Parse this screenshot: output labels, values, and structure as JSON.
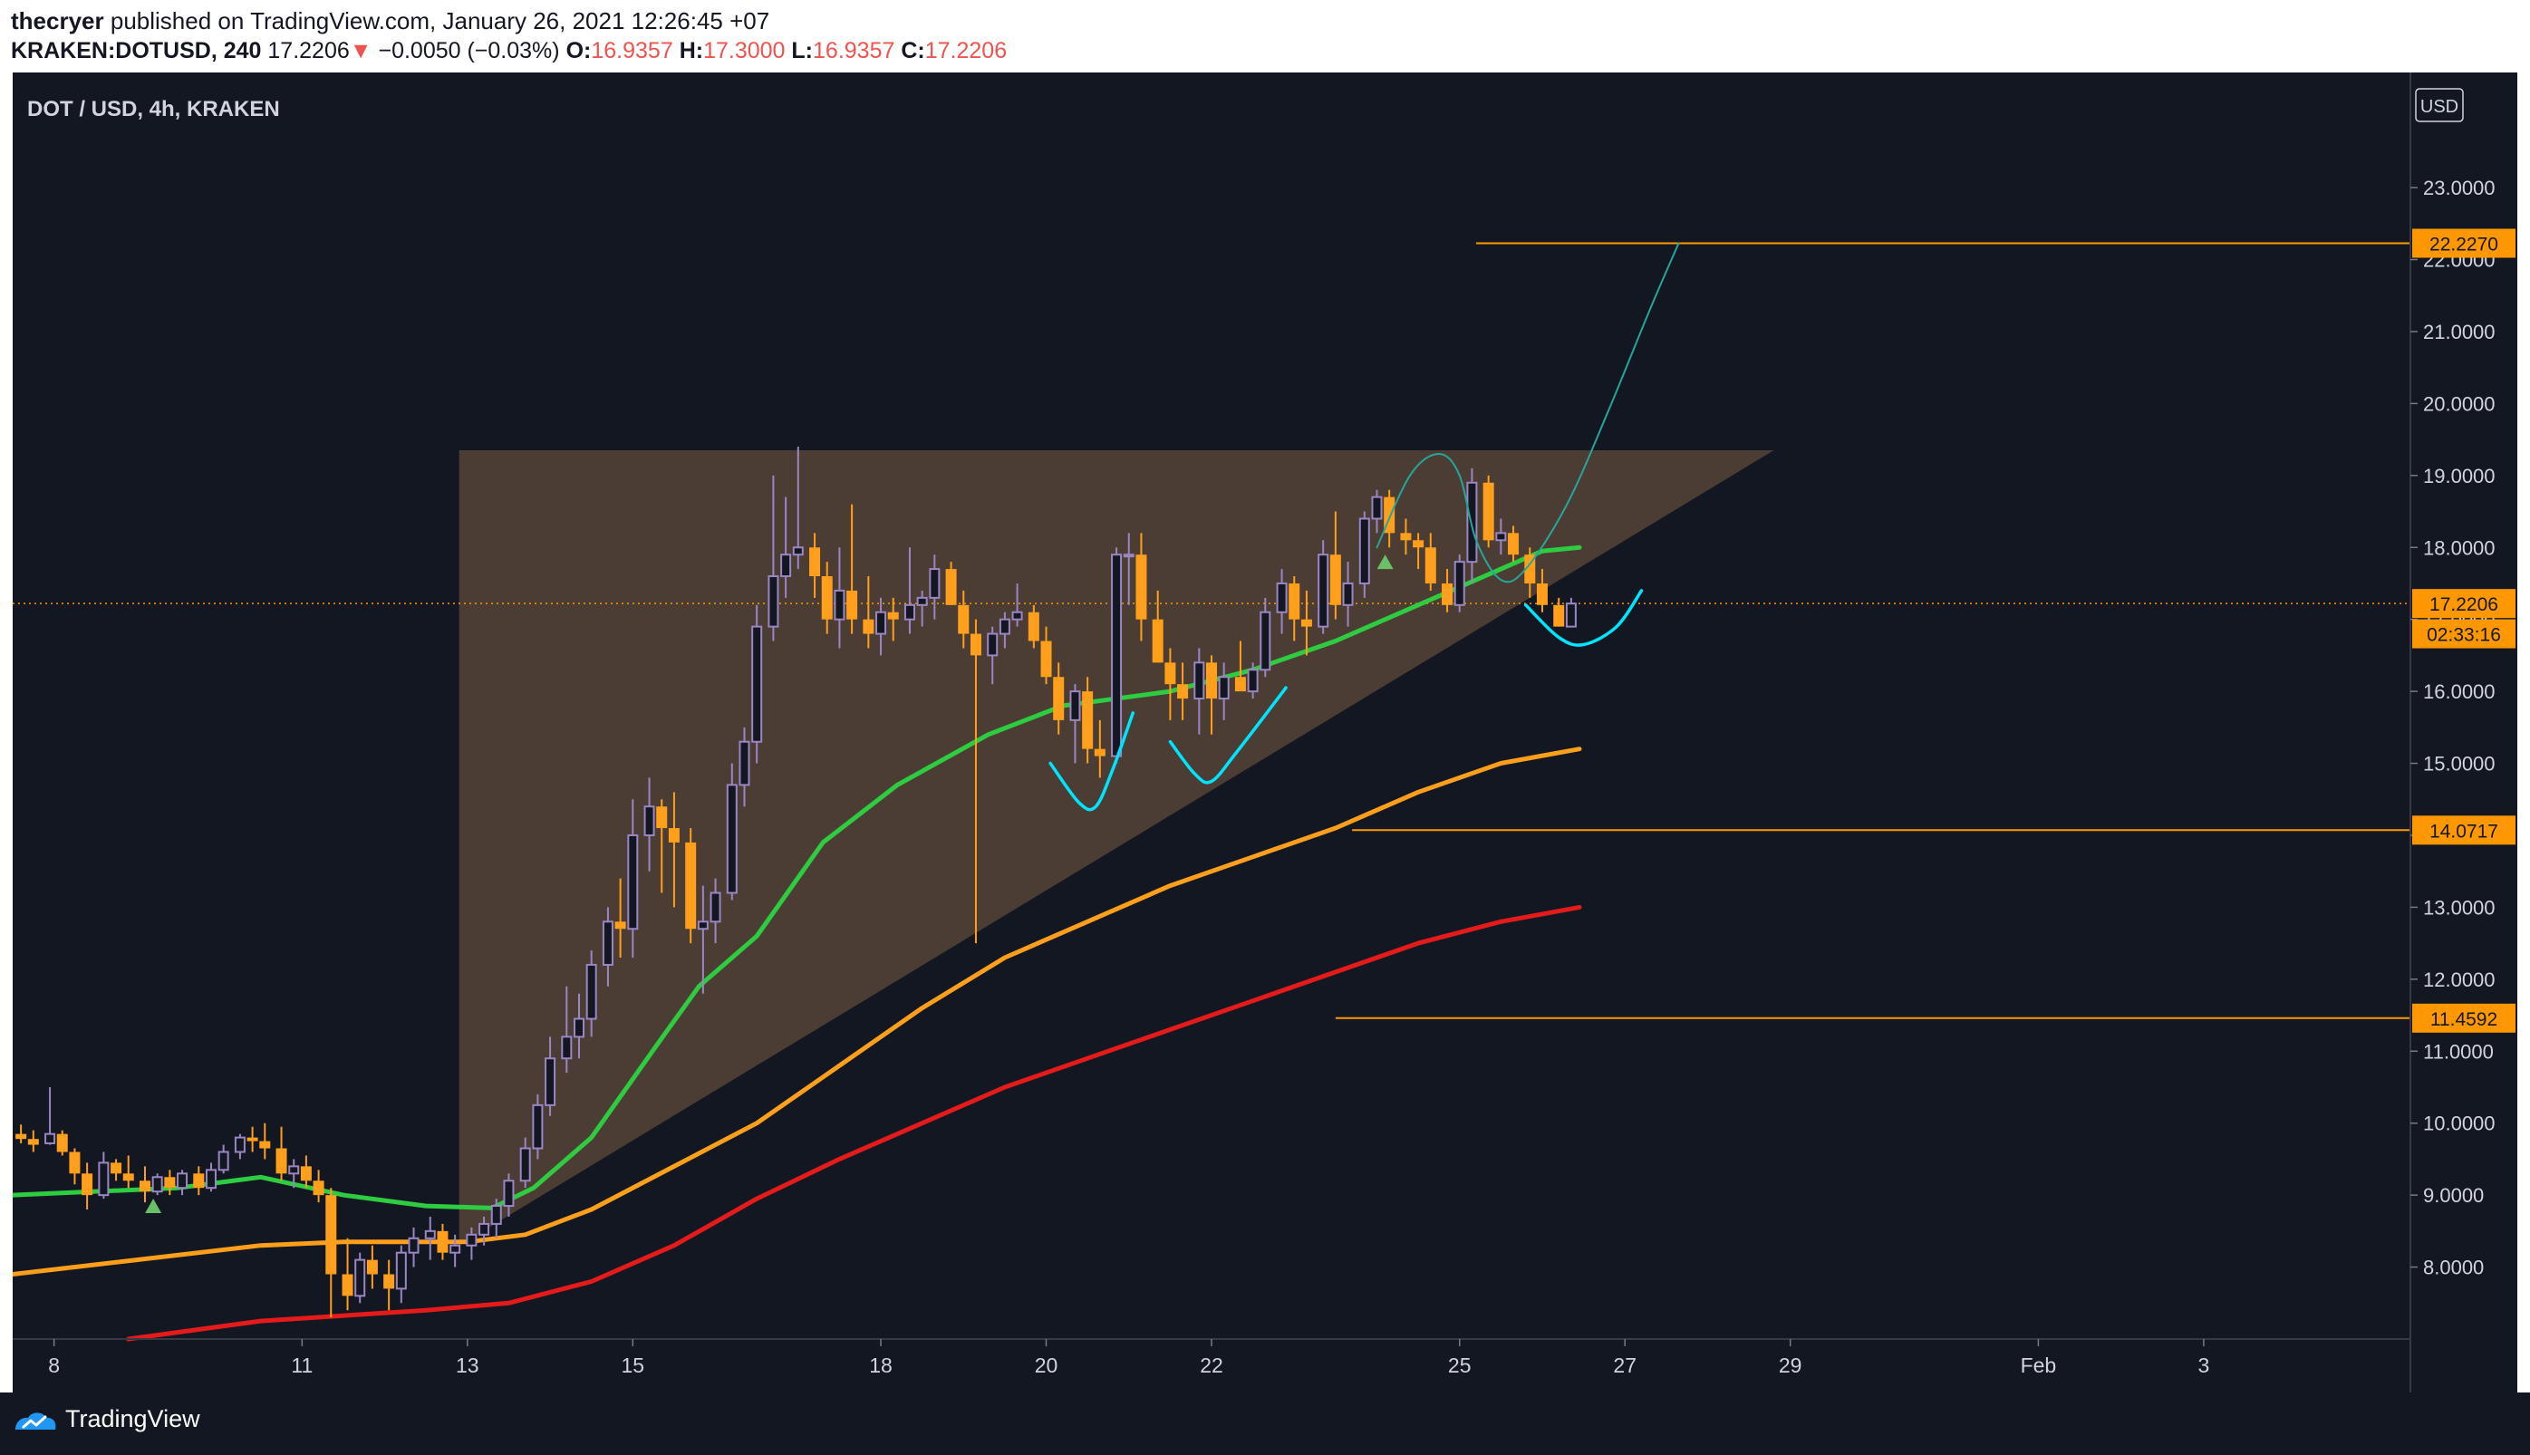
{
  "header": {
    "author": "thecryer",
    "published_text": "published on TradingView.com, January 26, 2021 12:26:45 +07",
    "symbol": "KRAKEN:DOTUSD, 240",
    "price": "17.2206",
    "change_arrow": "▼",
    "change": "−0.0050 (−0.03%)",
    "o_label": "O:",
    "o_value": "16.9357",
    "h_label": "H:",
    "h_value": "17.3000",
    "l_label": "L:",
    "l_value": "16.9357",
    "c_label": "C:",
    "c_value": "17.2206"
  },
  "chart_data": {
    "type": "candlestick",
    "title": "DOT / USD, 4h, KRAKEN",
    "currency": "USD",
    "ylim": [
      7.0,
      24.6
    ],
    "y_ticks": [
      8,
      9,
      10,
      11,
      12,
      13,
      14,
      15,
      16,
      17,
      18,
      19,
      20,
      21,
      22,
      23
    ],
    "y_tick_labels": [
      "8.0000",
      "9.0000",
      "10.0000",
      "11.0000",
      "12.0000",
      "13.0000",
      "14.0000",
      "15.0000",
      "16.0000",
      "17.0000",
      "18.0000",
      "19.0000",
      "20.0000",
      "21.0000",
      "22.0000",
      "23.0000"
    ],
    "xlim_days": [
      7.5,
      36.5
    ],
    "x_ticks": [
      {
        "day": 8,
        "label": "8"
      },
      {
        "day": 11,
        "label": "11"
      },
      {
        "day": 13,
        "label": "13"
      },
      {
        "day": 15,
        "label": "15"
      },
      {
        "day": 18,
        "label": "18"
      },
      {
        "day": 20,
        "label": "20"
      },
      {
        "day": 22,
        "label": "22"
      },
      {
        "day": 25,
        "label": "25"
      },
      {
        "day": 27,
        "label": "27"
      },
      {
        "day": 29,
        "label": "29"
      },
      {
        "day": 32,
        "label": "Feb"
      },
      {
        "day": 34,
        "label": "3"
      }
    ],
    "price_labels": [
      {
        "value": 22.227,
        "label": "22.2270",
        "kind": "level"
      },
      {
        "value": 17.2206,
        "label": "17.2206",
        "kind": "last"
      },
      {
        "value": 16.8,
        "label": "02:33:16",
        "kind": "countdown"
      },
      {
        "value": 14.0717,
        "label": "14.0717",
        "kind": "level"
      },
      {
        "value": 11.4592,
        "label": "11.4592",
        "kind": "level"
      }
    ],
    "horizontal_levels": [
      {
        "value": 22.227,
        "from_day": 25.2
      },
      {
        "value": 14.0717,
        "from_day": 23.7
      },
      {
        "value": 11.4592,
        "from_day": 23.5
      }
    ],
    "last_price": 17.2206,
    "triangle": [
      [
        12.9,
        19.35
      ],
      [
        28.8,
        19.35
      ],
      [
        12.9,
        8.3
      ]
    ],
    "candles": [
      [
        7.6,
        9.85,
        9.98,
        9.72,
        9.78
      ],
      [
        7.75,
        9.78,
        9.9,
        9.6,
        9.7
      ],
      [
        7.95,
        9.72,
        10.5,
        9.7,
        9.85
      ],
      [
        8.1,
        9.85,
        9.9,
        9.55,
        9.6
      ],
      [
        8.25,
        9.6,
        9.65,
        9.15,
        9.3
      ],
      [
        8.4,
        9.3,
        9.45,
        8.8,
        9.0
      ],
      [
        8.6,
        9.0,
        9.6,
        8.95,
        9.45
      ],
      [
        8.75,
        9.45,
        9.5,
        9.2,
        9.3
      ],
      [
        8.9,
        9.3,
        9.55,
        9.1,
        9.2
      ],
      [
        9.1,
        9.2,
        9.4,
        8.9,
        9.05
      ],
      [
        9.25,
        9.05,
        9.3,
        9.0,
        9.25
      ],
      [
        9.4,
        9.25,
        9.35,
        9.0,
        9.1
      ],
      [
        9.55,
        9.1,
        9.35,
        9.0,
        9.3
      ],
      [
        9.75,
        9.3,
        9.4,
        9.0,
        9.1
      ],
      [
        9.9,
        9.1,
        9.45,
        9.05,
        9.35
      ],
      [
        10.05,
        9.35,
        9.7,
        9.3,
        9.6
      ],
      [
        10.25,
        9.6,
        9.85,
        9.5,
        9.8
      ],
      [
        10.4,
        9.8,
        9.95,
        9.6,
        9.75
      ],
      [
        10.55,
        9.75,
        10.0,
        9.5,
        9.65
      ],
      [
        10.75,
        9.65,
        9.95,
        9.2,
        9.3
      ],
      [
        10.9,
        9.3,
        9.5,
        9.1,
        9.4
      ],
      [
        11.05,
        9.4,
        9.55,
        9.1,
        9.2
      ],
      [
        11.2,
        9.2,
        9.35,
        8.9,
        9.0
      ],
      [
        11.35,
        9.0,
        9.1,
        7.3,
        7.9
      ],
      [
        11.55,
        7.9,
        8.4,
        7.4,
        7.6
      ],
      [
        11.7,
        7.6,
        8.2,
        7.5,
        8.1
      ],
      [
        11.85,
        8.1,
        8.3,
        7.7,
        7.9
      ],
      [
        12.05,
        7.9,
        8.1,
        7.4,
        7.7
      ],
      [
        12.2,
        7.7,
        8.3,
        7.5,
        8.2
      ],
      [
        12.35,
        8.2,
        8.55,
        8.0,
        8.4
      ],
      [
        12.55,
        8.4,
        8.7,
        8.1,
        8.5
      ],
      [
        12.7,
        8.5,
        8.6,
        8.1,
        8.2
      ],
      [
        12.85,
        8.2,
        8.45,
        8.0,
        8.3
      ],
      [
        13.05,
        8.3,
        8.55,
        8.1,
        8.45
      ],
      [
        13.2,
        8.45,
        8.7,
        8.3,
        8.6
      ],
      [
        13.35,
        8.6,
        8.95,
        8.4,
        8.85
      ],
      [
        13.5,
        8.85,
        9.3,
        8.7,
        9.2
      ],
      [
        13.7,
        9.2,
        9.8,
        9.1,
        9.65
      ],
      [
        13.85,
        9.65,
        10.4,
        9.5,
        10.25
      ],
      [
        14.0,
        10.25,
        11.2,
        10.1,
        10.9
      ],
      [
        14.2,
        10.9,
        11.9,
        10.7,
        11.2
      ],
      [
        14.35,
        11.2,
        11.8,
        10.9,
        11.45
      ],
      [
        14.5,
        11.45,
        12.4,
        11.2,
        12.2
      ],
      [
        14.7,
        12.2,
        13.0,
        11.9,
        12.8
      ],
      [
        14.85,
        12.8,
        13.4,
        12.3,
        12.7
      ],
      [
        15.0,
        12.7,
        14.5,
        12.3,
        14.0
      ],
      [
        15.2,
        14.0,
        14.8,
        13.5,
        14.4
      ],
      [
        15.35,
        14.4,
        14.5,
        13.2,
        14.1
      ],
      [
        15.5,
        14.1,
        14.6,
        13.0,
        13.9
      ],
      [
        15.7,
        13.9,
        14.1,
        12.5,
        12.7
      ],
      [
        15.85,
        12.7,
        13.3,
        11.8,
        12.8
      ],
      [
        16.0,
        12.8,
        13.4,
        12.5,
        13.2
      ],
      [
        16.2,
        13.2,
        15.0,
        13.1,
        14.7
      ],
      [
        16.35,
        14.7,
        15.5,
        14.4,
        15.3
      ],
      [
        16.5,
        15.3,
        17.2,
        15.0,
        16.9
      ],
      [
        16.7,
        16.9,
        19.0,
        16.7,
        17.6
      ],
      [
        16.85,
        17.6,
        18.7,
        17.3,
        17.9
      ],
      [
        17.0,
        17.9,
        19.4,
        17.7,
        18.0
      ],
      [
        17.2,
        18.0,
        18.2,
        17.3,
        17.6
      ],
      [
        17.35,
        17.6,
        17.8,
        16.8,
        17.0
      ],
      [
        17.5,
        17.0,
        18.0,
        16.6,
        17.4
      ],
      [
        17.65,
        17.4,
        18.6,
        16.8,
        17.0
      ],
      [
        17.85,
        17.0,
        17.6,
        16.6,
        16.8
      ],
      [
        18.0,
        16.8,
        17.3,
        16.5,
        17.1
      ],
      [
        18.15,
        17.1,
        17.3,
        16.7,
        17.0
      ],
      [
        18.35,
        17.0,
        18.0,
        16.8,
        17.2
      ],
      [
        18.5,
        17.2,
        17.4,
        16.9,
        17.3
      ],
      [
        18.65,
        17.3,
        17.9,
        17.0,
        17.7
      ],
      [
        18.85,
        17.7,
        17.8,
        17.2,
        17.2
      ],
      [
        19.0,
        17.2,
        17.4,
        16.6,
        16.8
      ],
      [
        19.15,
        16.8,
        17.0,
        12.5,
        16.5
      ],
      [
        19.35,
        16.5,
        16.9,
        16.1,
        16.8
      ],
      [
        19.5,
        16.8,
        17.1,
        16.6,
        17.0
      ],
      [
        19.65,
        17.0,
        17.5,
        16.9,
        17.1
      ],
      [
        19.85,
        17.1,
        17.2,
        16.6,
        16.7
      ],
      [
        20.0,
        16.7,
        16.9,
        16.1,
        16.2
      ],
      [
        20.15,
        16.2,
        16.4,
        15.4,
        15.6
      ],
      [
        20.35,
        15.6,
        16.1,
        15.0,
        16.0
      ],
      [
        20.5,
        16.0,
        16.2,
        15.0,
        15.2
      ],
      [
        20.65,
        15.2,
        15.6,
        14.8,
        15.1
      ],
      [
        20.85,
        15.1,
        18.0,
        15.0,
        17.9
      ],
      [
        21.0,
        17.9,
        18.2,
        17.2,
        17.9
      ],
      [
        21.15,
        17.9,
        18.2,
        16.7,
        17.0
      ],
      [
        21.35,
        17.0,
        17.4,
        16.4,
        16.4
      ],
      [
        21.5,
        16.4,
        16.6,
        15.6,
        16.1
      ],
      [
        21.65,
        16.1,
        16.4,
        15.6,
        15.9
      ],
      [
        21.85,
        15.9,
        16.6,
        15.4,
        16.4
      ],
      [
        22.0,
        16.4,
        16.5,
        15.4,
        15.9
      ],
      [
        22.15,
        15.9,
        16.4,
        15.6,
        16.2
      ],
      [
        22.35,
        16.2,
        16.7,
        16.1,
        16.0
      ],
      [
        22.5,
        16.0,
        16.4,
        15.9,
        16.3
      ],
      [
        22.65,
        16.3,
        17.3,
        16.2,
        17.1
      ],
      [
        22.85,
        17.1,
        17.7,
        16.8,
        17.5
      ],
      [
        23.0,
        17.5,
        17.6,
        16.7,
        17.0
      ],
      [
        23.15,
        17.0,
        17.4,
        16.5,
        16.9
      ],
      [
        23.35,
        16.9,
        18.1,
        16.8,
        17.9
      ],
      [
        23.5,
        17.9,
        18.5,
        17.0,
        17.2
      ],
      [
        23.65,
        17.2,
        17.8,
        16.9,
        17.5
      ],
      [
        23.85,
        17.5,
        18.5,
        17.3,
        18.4
      ],
      [
        24.0,
        18.4,
        18.8,
        18.2,
        18.7
      ],
      [
        24.15,
        18.7,
        18.8,
        18.0,
        18.2
      ],
      [
        24.35,
        18.2,
        18.4,
        17.9,
        18.1
      ],
      [
        24.5,
        18.1,
        18.2,
        17.7,
        18.0
      ],
      [
        24.65,
        18.0,
        18.2,
        17.4,
        17.5
      ],
      [
        24.85,
        17.5,
        17.7,
        17.1,
        17.2
      ],
      [
        25.0,
        17.2,
        17.9,
        17.1,
        17.8
      ],
      [
        25.15,
        17.8,
        19.1,
        17.5,
        18.9
      ],
      [
        25.35,
        18.9,
        19.0,
        18.0,
        18.1
      ],
      [
        25.5,
        18.1,
        18.4,
        17.9,
        18.2
      ],
      [
        25.65,
        18.2,
        18.3,
        17.8,
        17.9
      ],
      [
        25.85,
        17.9,
        18.0,
        17.3,
        17.5
      ],
      [
        26.0,
        17.5,
        17.7,
        17.1,
        17.2
      ],
      [
        26.2,
        17.2,
        17.3,
        16.9,
        16.9
      ],
      [
        26.35,
        16.9,
        17.3,
        16.9,
        17.22
      ]
    ],
    "series": [
      {
        "name": "EMA fast",
        "color": "#2ecc40",
        "points": [
          [
            7.5,
            9.0
          ],
          [
            9.5,
            9.1
          ],
          [
            10.5,
            9.25
          ],
          [
            11.5,
            9.0
          ],
          [
            12.5,
            8.85
          ],
          [
            13.3,
            8.82
          ],
          [
            13.8,
            9.1
          ],
          [
            14.5,
            9.8
          ],
          [
            15.3,
            11.1
          ],
          [
            15.8,
            11.9
          ],
          [
            16.5,
            12.6
          ],
          [
            17.3,
            13.9
          ],
          [
            18.2,
            14.7
          ],
          [
            19.3,
            15.4
          ],
          [
            20.2,
            15.8
          ],
          [
            21.5,
            16.0
          ],
          [
            22.5,
            16.3
          ],
          [
            23.5,
            16.7
          ],
          [
            24.5,
            17.2
          ],
          [
            25.5,
            17.7
          ],
          [
            26.0,
            17.95
          ],
          [
            26.45,
            18.0
          ]
        ]
      },
      {
        "name": "EMA mid",
        "color": "#ff9f1c",
        "points": [
          [
            7.5,
            7.9
          ],
          [
            9.0,
            8.1
          ],
          [
            10.5,
            8.3
          ],
          [
            11.5,
            8.35
          ],
          [
            13.0,
            8.35
          ],
          [
            13.7,
            8.45
          ],
          [
            14.5,
            8.8
          ],
          [
            15.5,
            9.4
          ],
          [
            16.5,
            10.0
          ],
          [
            17.5,
            10.8
          ],
          [
            18.5,
            11.6
          ],
          [
            19.5,
            12.3
          ],
          [
            20.5,
            12.8
          ],
          [
            21.5,
            13.3
          ],
          [
            22.5,
            13.7
          ],
          [
            23.5,
            14.1
          ],
          [
            24.5,
            14.6
          ],
          [
            25.5,
            15.0
          ],
          [
            26.45,
            15.2
          ]
        ]
      },
      {
        "name": "EMA slow",
        "color": "#e51b1b",
        "points": [
          [
            8.9,
            7.0
          ],
          [
            10.5,
            7.25
          ],
          [
            12.5,
            7.4
          ],
          [
            13.5,
            7.5
          ],
          [
            14.5,
            7.8
          ],
          [
            15.5,
            8.3
          ],
          [
            16.5,
            8.95
          ],
          [
            17.5,
            9.5
          ],
          [
            18.5,
            10.0
          ],
          [
            19.5,
            10.5
          ],
          [
            20.5,
            10.9
          ],
          [
            21.5,
            11.3
          ],
          [
            22.5,
            11.7
          ],
          [
            23.5,
            12.1
          ],
          [
            24.5,
            12.5
          ],
          [
            25.5,
            12.8
          ],
          [
            26.45,
            13.0
          ]
        ]
      }
    ],
    "annotations": [
      {
        "name": "projection-path",
        "color": "#26a69a",
        "points": [
          [
            24.0,
            18.0
          ],
          [
            24.4,
            19.0
          ],
          [
            24.75,
            19.3
          ],
          [
            25.0,
            19.0
          ],
          [
            25.2,
            18.1
          ],
          [
            25.5,
            17.55
          ],
          [
            25.8,
            17.7
          ],
          [
            26.3,
            18.6
          ],
          [
            26.8,
            19.9
          ],
          [
            27.3,
            21.3
          ],
          [
            27.65,
            22.227
          ]
        ]
      },
      {
        "name": "cyan-cup-1",
        "color": "#00e5ff",
        "points": [
          [
            20.05,
            15.0
          ],
          [
            20.4,
            14.45
          ],
          [
            20.6,
            14.4
          ],
          [
            20.8,
            14.9
          ],
          [
            21.05,
            15.7
          ]
        ]
      },
      {
        "name": "cyan-cup-2",
        "color": "#00e5ff",
        "points": [
          [
            21.5,
            15.3
          ],
          [
            21.8,
            14.85
          ],
          [
            22.0,
            14.75
          ],
          [
            22.3,
            15.15
          ],
          [
            22.9,
            16.05
          ]
        ]
      },
      {
        "name": "cyan-cup-3",
        "color": "#00e5ff",
        "points": [
          [
            25.8,
            17.2
          ],
          [
            26.2,
            16.75
          ],
          [
            26.5,
            16.65
          ],
          [
            26.9,
            16.9
          ],
          [
            27.2,
            17.4
          ]
        ]
      }
    ],
    "markers": [
      {
        "day": 9.2,
        "value": 8.85,
        "color": "#6abf69"
      },
      {
        "day": 24.1,
        "value": 17.8,
        "color": "#6abf69"
      }
    ]
  },
  "footer": {
    "brand": "TradingView"
  }
}
